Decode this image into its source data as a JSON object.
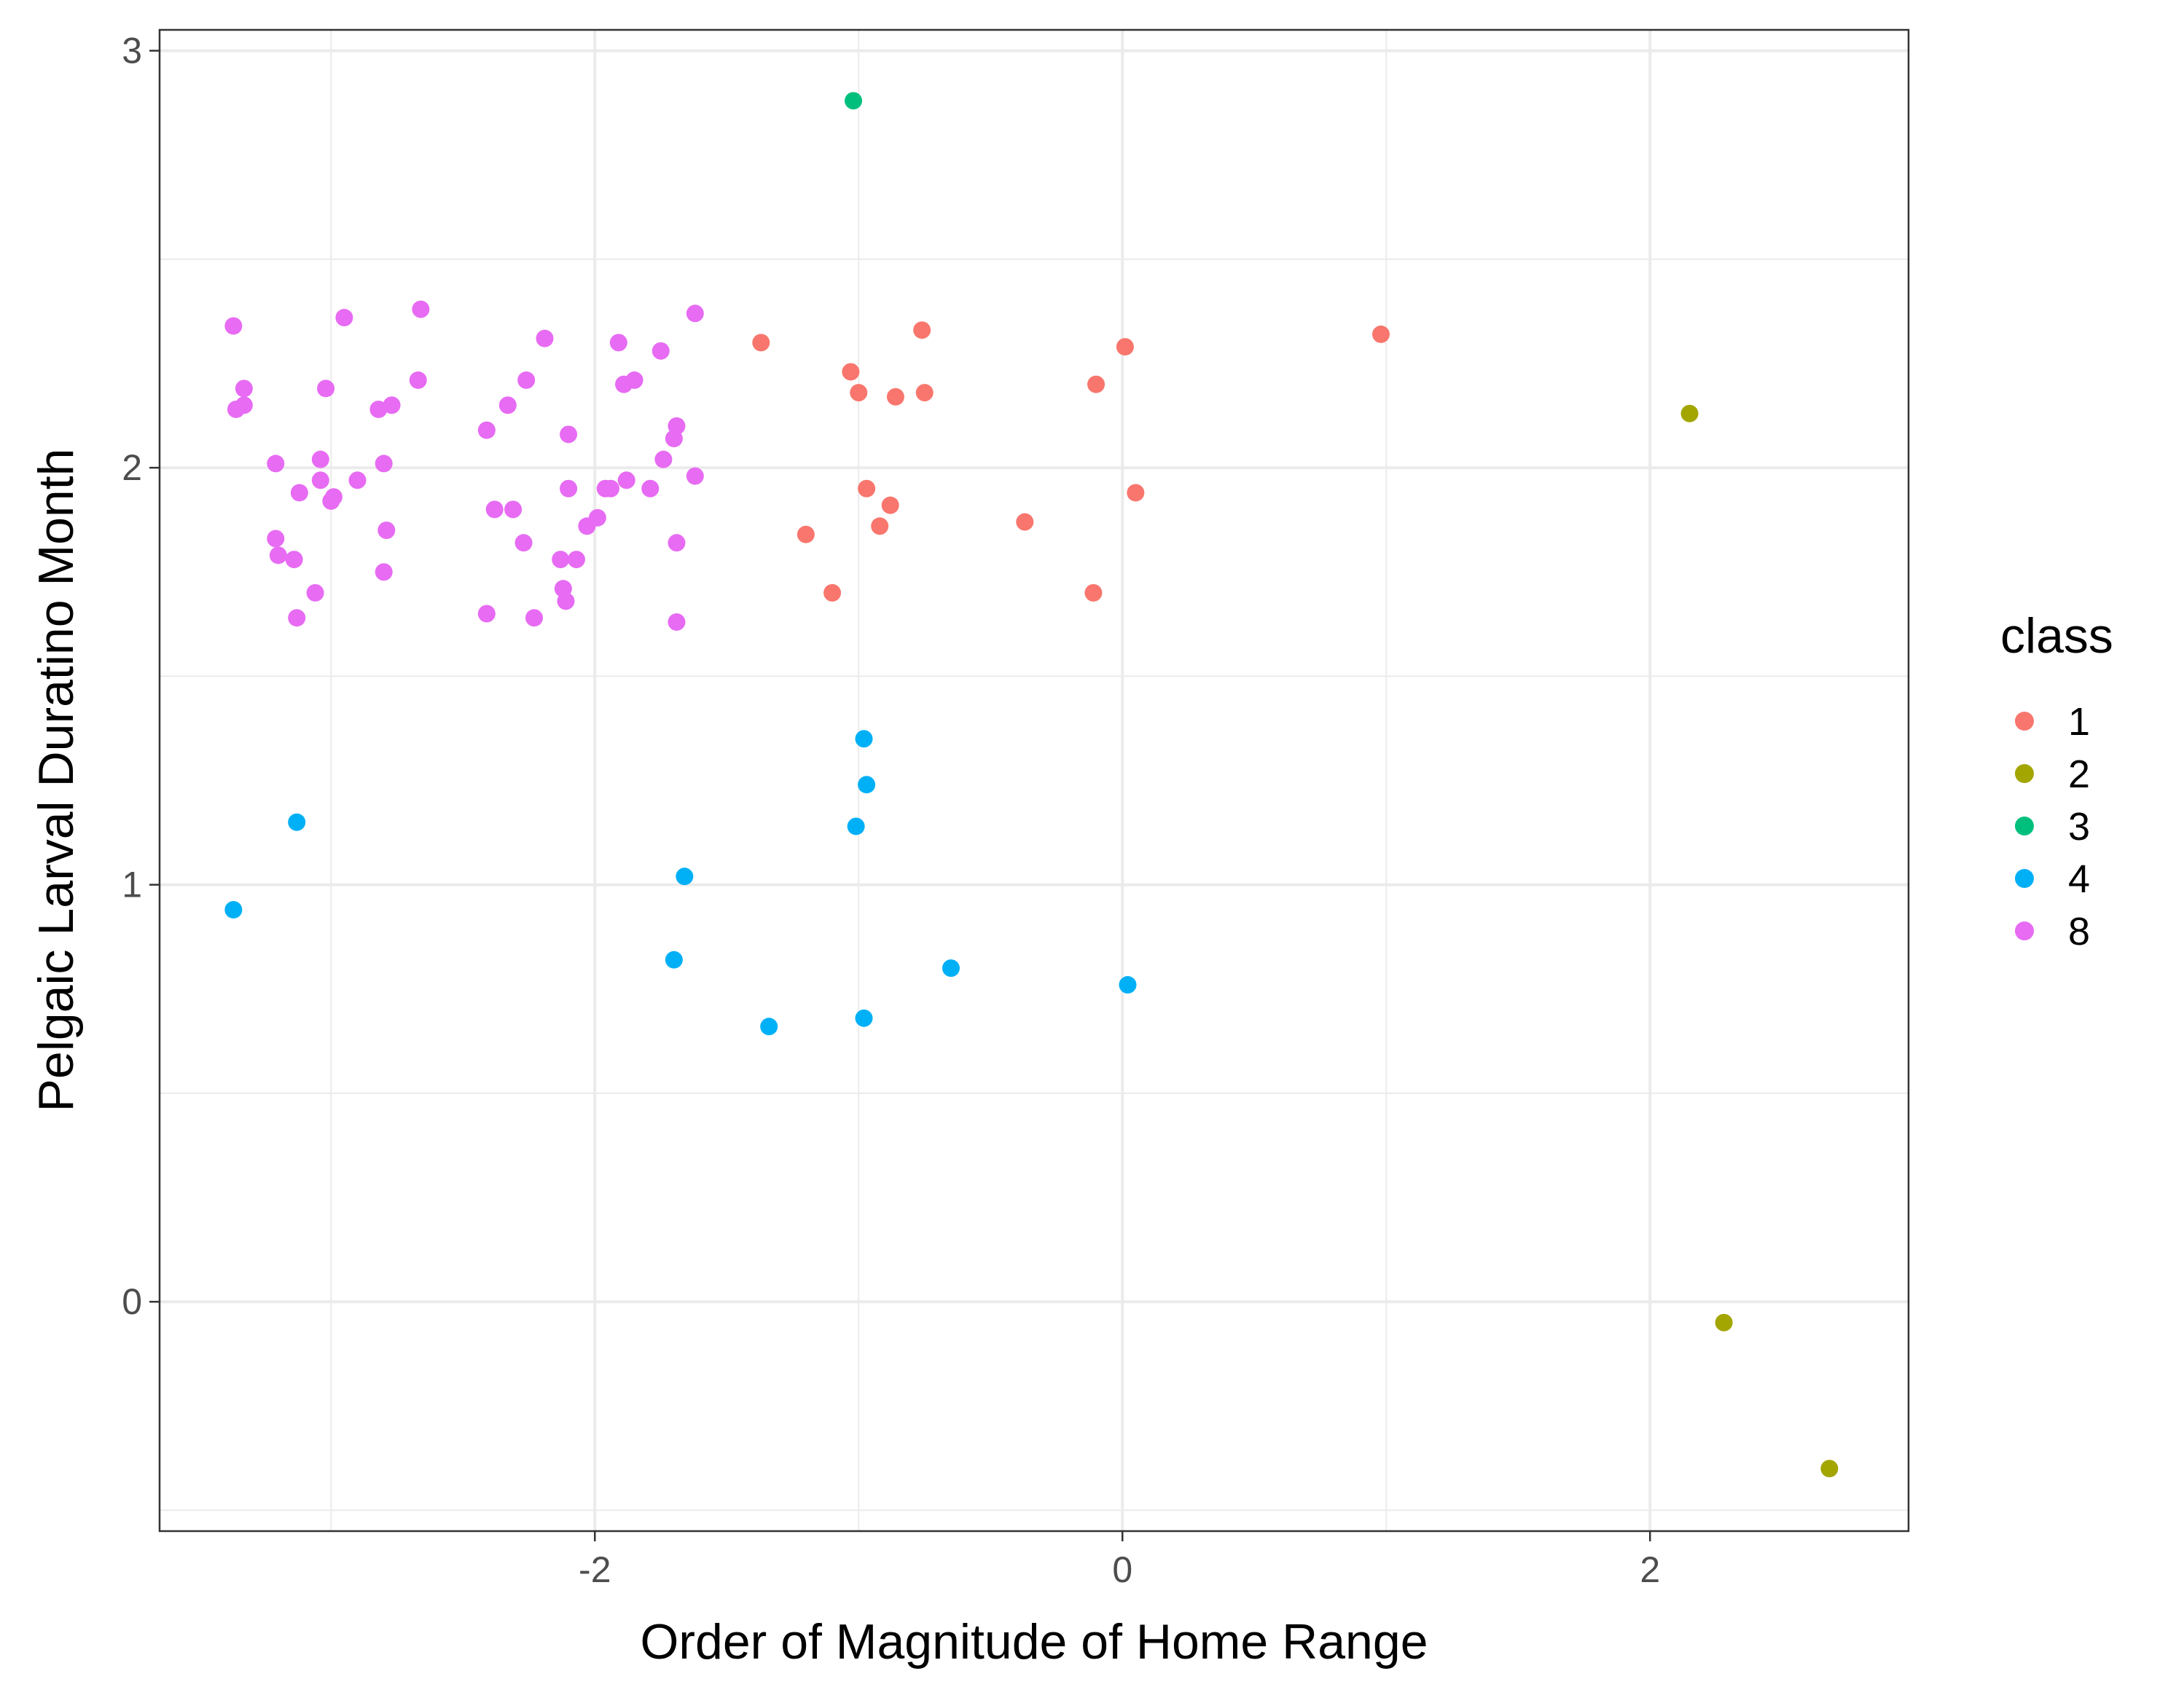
{
  "chart_data": {
    "type": "scatter",
    "title": "",
    "xlabel": "Order of Magnitude of Home Range",
    "ylabel": "Pelgaic Larval Duratino Month",
    "xlim": [
      -3.65,
      2.98
    ],
    "ylim": [
      -0.55,
      3.05
    ],
    "x_ticks": [
      -2,
      0,
      2
    ],
    "y_ticks": [
      0,
      1,
      2,
      3
    ],
    "x_tick_labels": [
      "-2",
      "0",
      "2"
    ],
    "y_tick_labels": [
      "0",
      "1",
      "2",
      "3"
    ],
    "x_minor_grid": [
      -3,
      -1,
      1
    ],
    "y_minor_grid": [
      -0.5,
      0.5,
      1.5,
      2.5
    ],
    "grid": true,
    "legend": {
      "title": "class",
      "position": "right"
    },
    "series": [
      {
        "name": "1",
        "color": "#F8766D",
        "points": [
          [
            -1.37,
            2.3
          ],
          [
            -1.03,
            2.23
          ],
          [
            -1.0,
            2.18
          ],
          [
            -0.76,
            2.33
          ],
          [
            -0.86,
            2.17
          ],
          [
            -0.75,
            2.18
          ],
          [
            -0.1,
            2.2
          ],
          [
            0.01,
            2.29
          ],
          [
            0.98,
            2.32
          ],
          [
            -0.97,
            1.95
          ],
          [
            -0.88,
            1.91
          ],
          [
            -0.92,
            1.86
          ],
          [
            -1.2,
            1.84
          ],
          [
            -0.37,
            1.87
          ],
          [
            -1.1,
            1.7
          ],
          [
            -0.11,
            1.7
          ],
          [
            0.05,
            1.94
          ]
        ]
      },
      {
        "name": "2",
        "color": "#A3A500",
        "points": [
          [
            2.15,
            2.13
          ],
          [
            2.28,
            -0.05
          ],
          [
            2.68,
            -0.4
          ]
        ]
      },
      {
        "name": "3",
        "color": "#00BF7D",
        "points": [
          [
            -1.02,
            2.88
          ]
        ]
      },
      {
        "name": "4",
        "color": "#00B0F6",
        "points": [
          [
            -3.37,
            0.94
          ],
          [
            -3.13,
            1.15
          ],
          [
            -1.66,
            1.02
          ],
          [
            -1.7,
            0.82
          ],
          [
            -1.34,
            0.66
          ],
          [
            -0.98,
            1.35
          ],
          [
            -0.97,
            1.24
          ],
          [
            -1.01,
            1.14
          ],
          [
            -0.98,
            0.68
          ],
          [
            -0.65,
            0.8
          ],
          [
            0.02,
            0.76
          ]
        ]
      },
      {
        "name": "8",
        "color": "#E76BF3",
        "points": [
          [
            -3.37,
            2.34
          ],
          [
            -3.33,
            2.19
          ],
          [
            -3.33,
            2.15
          ],
          [
            -3.36,
            2.14
          ],
          [
            -3.21,
            2.01
          ],
          [
            -3.12,
            1.94
          ],
          [
            -3.14,
            1.78
          ],
          [
            -3.2,
            1.79
          ],
          [
            -3.21,
            1.83
          ],
          [
            -3.13,
            1.64
          ],
          [
            -3.06,
            1.7
          ],
          [
            -3.04,
            2.02
          ],
          [
            -3.04,
            1.97
          ],
          [
            -2.99,
            1.93
          ],
          [
            -3.0,
            1.92
          ],
          [
            -3.02,
            2.19
          ],
          [
            -2.95,
            2.36
          ],
          [
            -2.9,
            1.97
          ],
          [
            -2.82,
            2.14
          ],
          [
            -2.77,
            2.15
          ],
          [
            -2.8,
            2.01
          ],
          [
            -2.79,
            1.85
          ],
          [
            -2.8,
            1.75
          ],
          [
            -2.67,
            2.21
          ],
          [
            -2.66,
            2.38
          ],
          [
            -2.41,
            2.09
          ],
          [
            -2.41,
            1.65
          ],
          [
            -2.38,
            1.9
          ],
          [
            -2.33,
            2.15
          ],
          [
            -2.31,
            1.9
          ],
          [
            -2.27,
            1.82
          ],
          [
            -2.26,
            2.21
          ],
          [
            -2.23,
            1.64
          ],
          [
            -2.19,
            2.31
          ],
          [
            -2.13,
            1.78
          ],
          [
            -2.12,
            1.71
          ],
          [
            -2.11,
            1.68
          ],
          [
            -2.1,
            1.95
          ],
          [
            -2.1,
            2.08
          ],
          [
            -2.07,
            1.78
          ],
          [
            -2.03,
            1.86
          ],
          [
            -1.99,
            1.88
          ],
          [
            -1.96,
            1.95
          ],
          [
            -1.94,
            1.95
          ],
          [
            -1.91,
            2.3
          ],
          [
            -1.89,
            2.2
          ],
          [
            -1.88,
            1.97
          ],
          [
            -1.85,
            2.21
          ],
          [
            -1.79,
            1.95
          ],
          [
            -1.75,
            2.28
          ],
          [
            -1.74,
            2.02
          ],
          [
            -1.7,
            2.07
          ],
          [
            -1.69,
            2.1
          ],
          [
            -1.69,
            1.82
          ],
          [
            -1.69,
            1.63
          ],
          [
            -1.62,
            2.37
          ],
          [
            -1.62,
            1.98
          ]
        ]
      }
    ]
  }
}
